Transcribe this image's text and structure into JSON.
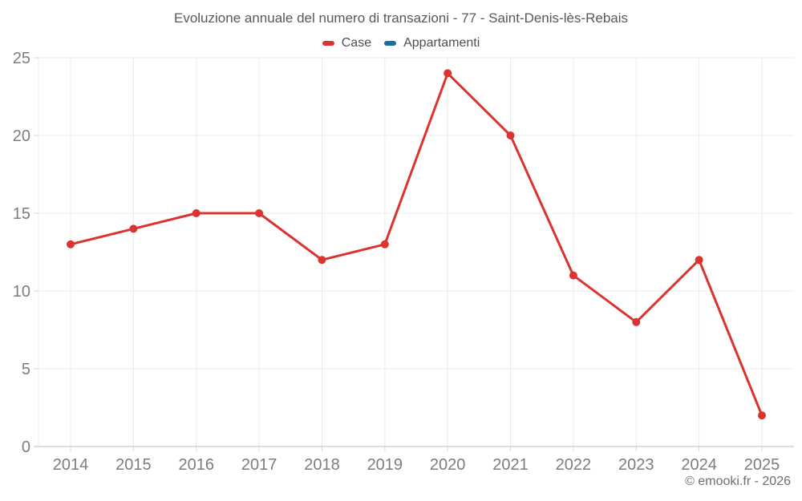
{
  "title": "Evoluzione annuale del numero di transazioni - 77 - Saint-Denis-lès-Rebais",
  "legend": [
    {
      "label": "Case",
      "color": "#db3430"
    },
    {
      "label": "Appartamenti",
      "color": "#17709e"
    }
  ],
  "credit": "© emooki.fr - 2026",
  "colors": {
    "case_series": "#db3430",
    "appartamenti_series": "#17709e",
    "grid_line": "#ebebeb",
    "axis_line": "#c9c9c9",
    "tick_line": "#d6d6d6",
    "axis_label": "#7d7d7d",
    "title_text": "#55585c",
    "legend_text": "#4c4f52",
    "credit_text": "#6e6e6e",
    "background": "#ffffff"
  },
  "chart_data": {
    "type": "line",
    "title": "Evoluzione annuale del numero di transazioni - 77 - Saint-Denis-lès-Rebais",
    "x": [
      "2014",
      "2015",
      "2016",
      "2017",
      "2018",
      "2019",
      "2020",
      "2021",
      "2022",
      "2023",
      "2024",
      "2025"
    ],
    "series": [
      {
        "name": "Case",
        "color": "#db3430",
        "values": [
          13,
          14,
          15,
          15,
          12,
          13,
          24,
          20,
          11,
          8,
          12,
          2
        ]
      },
      {
        "name": "Appartamenti",
        "color": "#17709e",
        "values": []
      }
    ],
    "xlabel": "",
    "ylabel": "",
    "ylim": [
      0,
      25
    ],
    "yticks": [
      0,
      5,
      10,
      15,
      20,
      25
    ],
    "grid": true,
    "legend_position": "top",
    "marker": "circle"
  }
}
